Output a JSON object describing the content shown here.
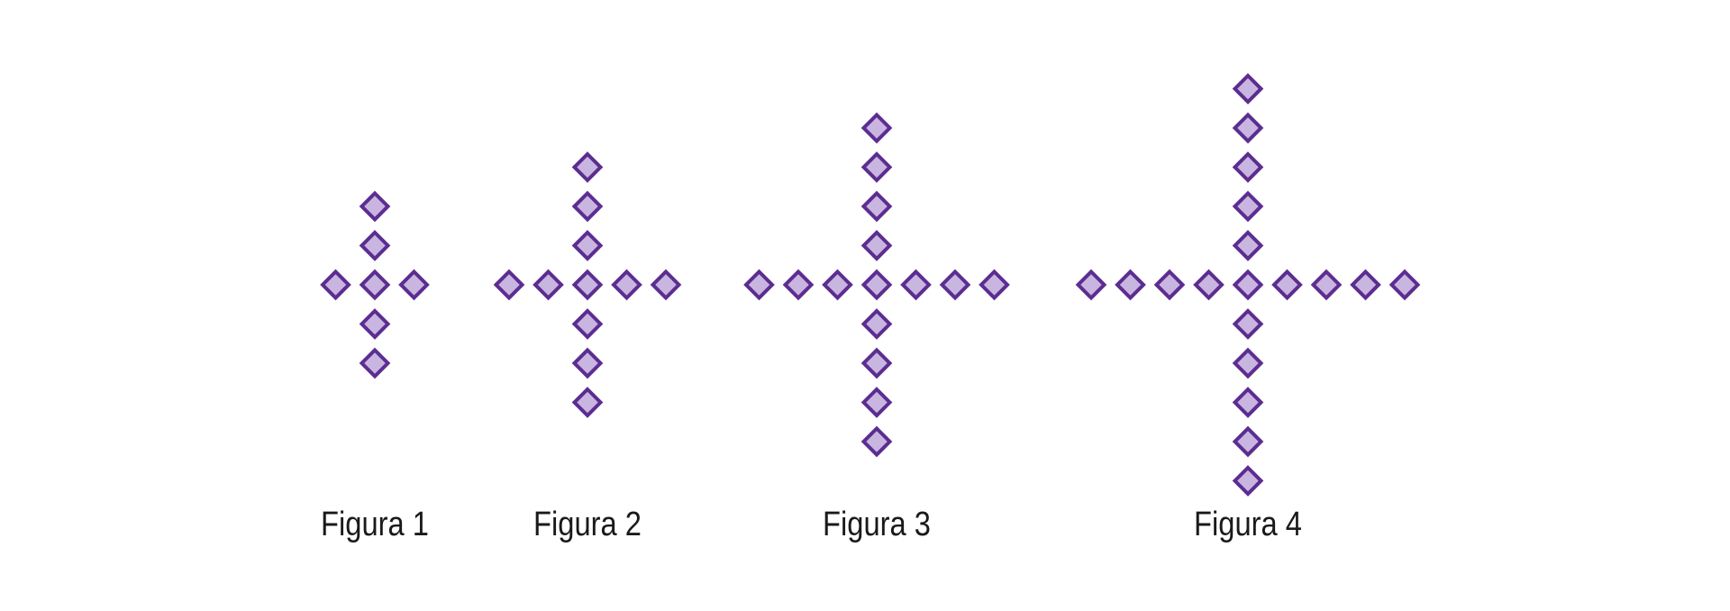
{
  "figures": [
    {
      "label": "Figura 1",
      "arm_length": 2,
      "horizontal_arm_length": 1
    },
    {
      "label": "Figura 2",
      "arm_length": 3,
      "horizontal_arm_length": 2
    },
    {
      "label": "Figura 3",
      "arm_length": 4,
      "horizontal_arm_length": 3
    },
    {
      "label": "Figura 4",
      "arm_length": 5,
      "horizontal_arm_length": 4
    }
  ],
  "colors": {
    "diamond_fill": "#c9b6e0",
    "diamond_stroke": "#5c2d91",
    "label_text": "#1a1a1a"
  }
}
